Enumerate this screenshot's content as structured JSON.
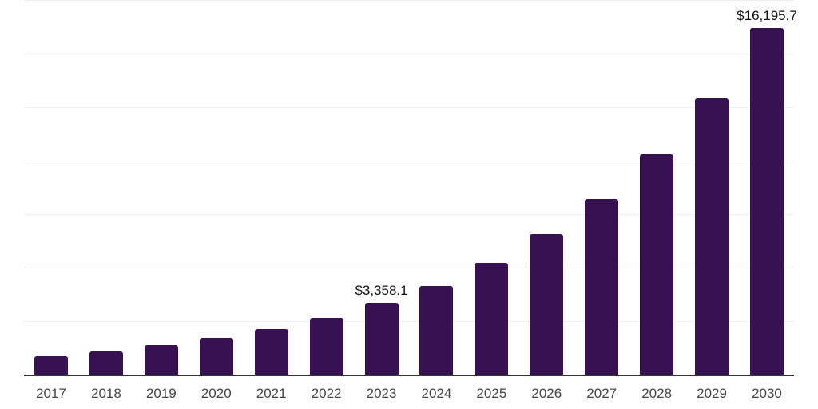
{
  "chart_data": {
    "type": "bar",
    "title": "",
    "categories": [
      "2017",
      "2018",
      "2019",
      "2020",
      "2021",
      "2022",
      "2023",
      "2024",
      "2025",
      "2026",
      "2027",
      "2028",
      "2029",
      "2030"
    ],
    "values": [
      860,
      1075,
      1380,
      1715,
      2120,
      2640,
      3358.1,
      4160,
      5240,
      6570,
      8200,
      10290,
      12900,
      16195.7
    ],
    "data_labels": [
      "",
      "",
      "",
      "",
      "",
      "",
      "$3,358.1",
      "",
      "",
      "",
      "",
      "",
      "",
      "$16,195.7"
    ],
    "xlabel": "",
    "ylabel": "",
    "ylim": [
      0,
      17500
    ],
    "gridline_step": 2500,
    "grid": true,
    "legend_position": "none",
    "colors": {
      "bar": "#371151",
      "axis_line": "#333333",
      "gridline": "#f1f1f1",
      "year_label": "#474747",
      "value_label": "#141414",
      "background": "#ffffff"
    }
  }
}
